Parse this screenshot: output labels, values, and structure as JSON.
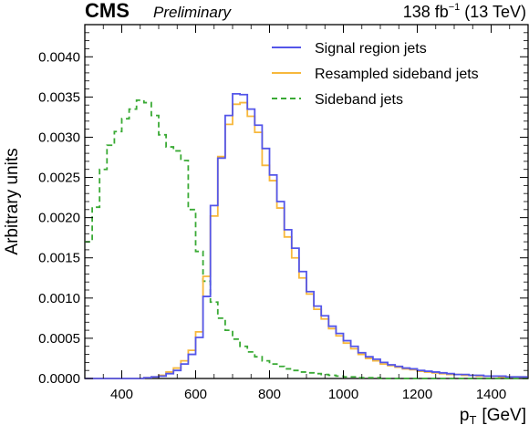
{
  "header": {
    "experiment": "CMS",
    "status": "Preliminary",
    "lumi_value": "138 fb",
    "lumi_exponent": "−1",
    "lumi_energy": "(13 TeV)"
  },
  "chart_data": {
    "type": "line",
    "xlabel_main": "p",
    "xlabel_sub": "T",
    "xlabel_unit": "[GeV]",
    "ylabel": "Arbitrary units",
    "xlim": [
      300,
      1500
    ],
    "ylim": [
      0,
      0.0044
    ],
    "grid": false,
    "legend_position": "top-right",
    "x_ticks": [
      400,
      600,
      800,
      1000,
      1200,
      1400
    ],
    "x_tick_labels": [
      "400",
      "600",
      "800",
      "1000",
      "1200",
      "1400"
    ],
    "y_ticks": [
      0,
      0.0005,
      0.001,
      0.0015,
      0.002,
      0.0025,
      0.003,
      0.0035,
      0.004
    ],
    "y_tick_labels": [
      "0.0000",
      "0.0005",
      "0.0010",
      "0.0015",
      "0.0020",
      "0.0025",
      "0.0030",
      "0.0035",
      "0.0040"
    ],
    "bin_edges": [
      300,
      320,
      340,
      360,
      380,
      400,
      420,
      440,
      460,
      480,
      500,
      520,
      540,
      560,
      580,
      600,
      620,
      640,
      660,
      680,
      700,
      720,
      740,
      760,
      780,
      800,
      820,
      840,
      860,
      880,
      900,
      920,
      940,
      960,
      980,
      1000,
      1020,
      1040,
      1060,
      1080,
      1100,
      1120,
      1140,
      1160,
      1180,
      1200,
      1220,
      1240,
      1260,
      1280,
      1300,
      1320,
      1340,
      1360,
      1380,
      1400,
      1420,
      1440,
      1460,
      1480,
      1500
    ],
    "series": [
      {
        "name": "Signal region jets",
        "color": "#5456e9",
        "style": "solid",
        "values": [
          0,
          0,
          0,
          0,
          0,
          0,
          0,
          0,
          1e-05,
          2e-05,
          3e-05,
          6e-05,
          0.0001,
          0.00018,
          0.0003,
          0.00051,
          0.00102,
          0.00215,
          0.00274,
          0.00327,
          0.00354,
          0.00353,
          0.00335,
          0.00315,
          0.00286,
          0.00253,
          0.0022,
          0.00185,
          0.00162,
          0.00133,
          0.00108,
          0.0009,
          0.00078,
          0.00065,
          0.00056,
          0.00047,
          0.0004,
          0.00032,
          0.00027,
          0.00024,
          0.0002,
          0.00017,
          0.00015,
          0.00013,
          0.00012,
          0.0001,
          9e-05,
          8e-05,
          7e-05,
          6e-05,
          5e-05,
          5e-05,
          4e-05,
          4e-05,
          3e-05,
          3e-05,
          3e-05,
          2e-05,
          2e-05,
          2e-05
        ]
      },
      {
        "name": "Resampled sideband jets",
        "color": "#f7b83c",
        "style": "solid",
        "values": [
          0,
          0,
          0,
          0,
          0,
          0,
          0,
          0,
          1e-05,
          2e-05,
          4e-05,
          8e-05,
          0.00013,
          0.00022,
          0.00035,
          0.00058,
          0.00127,
          0.00202,
          0.00276,
          0.00316,
          0.00341,
          0.00343,
          0.00326,
          0.00306,
          0.00265,
          0.00246,
          0.00212,
          0.00176,
          0.0015,
          0.00125,
          0.00105,
          0.00086,
          0.00074,
          0.00062,
          0.00053,
          0.00044,
          0.00037,
          0.0003,
          0.00025,
          0.00022,
          0.00018,
          0.00016,
          0.00014,
          0.00012,
          0.00011,
          9e-05,
          8e-05,
          7e-05,
          6e-05,
          5e-05,
          5e-05,
          4e-05,
          4e-05,
          3e-05,
          3e-05,
          3e-05,
          2e-05,
          2e-05,
          2e-05,
          2e-05
        ]
      },
      {
        "name": "Sideband jets",
        "color": "#3aaa35",
        "style": "dashed",
        "values": [
          0.0017,
          0.00213,
          0.0026,
          0.0029,
          0.00307,
          0.00323,
          0.00335,
          0.00346,
          0.00343,
          0.00327,
          0.00303,
          0.00288,
          0.00283,
          0.00271,
          0.0021,
          0.00158,
          0.00121,
          0.00095,
          0.00075,
          0.0006,
          0.00049,
          0.0004,
          0.00033,
          0.00027,
          0.00022,
          0.00018,
          0.00015,
          0.00012,
          0.0001,
          8e-05,
          7e-05,
          6e-05,
          5e-05,
          4e-05,
          3e-05,
          2e-05,
          2e-05,
          1e-05,
          1e-05,
          1e-05,
          0,
          0,
          0,
          0,
          0,
          0,
          0,
          0,
          0,
          0,
          0,
          0,
          0,
          0,
          0,
          0,
          0,
          0,
          0,
          0
        ]
      }
    ]
  }
}
